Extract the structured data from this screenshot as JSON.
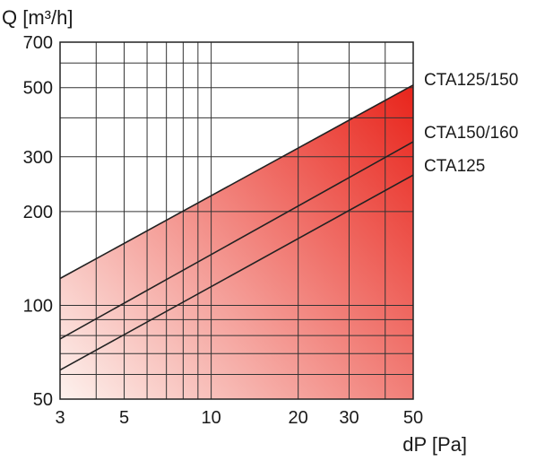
{
  "chart_data": {
    "type": "line",
    "xlabel": "dP [Pa]",
    "ylabel": "Q [m³/h]",
    "x_scale": "log",
    "y_scale": "log",
    "xlim": [
      3,
      50
    ],
    "ylim": [
      50,
      700
    ],
    "x_ticks": [
      3,
      5,
      10,
      20,
      30,
      50
    ],
    "y_ticks": [
      50,
      100,
      200,
      300,
      500,
      700
    ],
    "grid": true,
    "fill": {
      "description_color_start": "#fdf2ee",
      "color_end": "#e8241b"
    },
    "series": [
      {
        "name": "CTA125/150",
        "x": [
          3,
          50
        ],
        "y": [
          122,
          510
        ]
      },
      {
        "name": "CTA150/160",
        "x": [
          3,
          50
        ],
        "y": [
          78,
          335
        ]
      },
      {
        "name": "CTA125",
        "x": [
          3,
          50
        ],
        "y": [
          62,
          262
        ]
      }
    ]
  },
  "colors": {
    "frame": "#222222",
    "grid": "#333333",
    "series_line": "#222222",
    "fill_light": "#fdf2ee",
    "fill_dark": "#e8241b"
  }
}
